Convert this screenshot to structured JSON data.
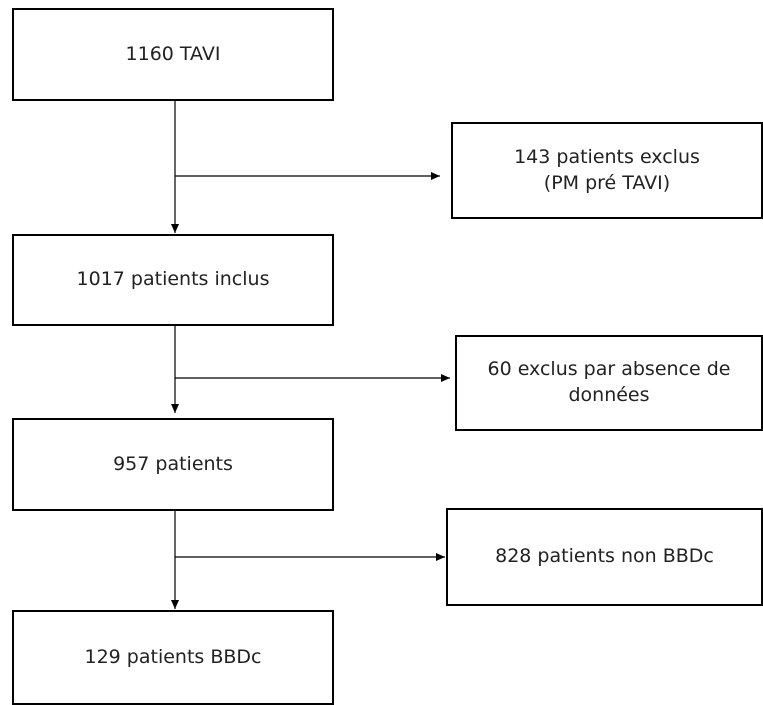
{
  "nodes": [
    {
      "lines": [
        "1160 TAVI"
      ]
    },
    {
      "lines": [
        "143 patients exclus",
        "(PM pré TAVI)"
      ]
    },
    {
      "lines": [
        "1017 patients inclus"
      ]
    },
    {
      "lines": [
        "60 exclus par absence de",
        "données"
      ]
    },
    {
      "lines": [
        "957 patients"
      ]
    },
    {
      "lines": [
        "828 patients non BBDc"
      ]
    },
    {
      "lines": [
        "129 patients BBDc"
      ]
    }
  ]
}
